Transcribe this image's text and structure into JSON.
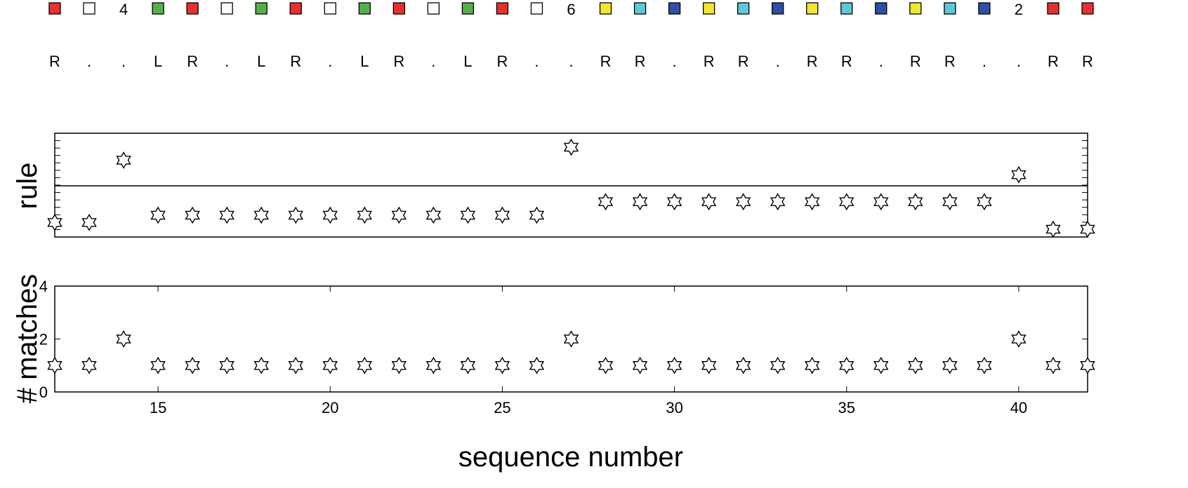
{
  "sequence_row": {
    "items": [
      {
        "kind": "square",
        "color": "#e8302f"
      },
      {
        "kind": "square",
        "color": "#ffffff"
      },
      {
        "kind": "text",
        "label": "4"
      },
      {
        "kind": "square",
        "color": "#55b04a"
      },
      {
        "kind": "square",
        "color": "#e8302f"
      },
      {
        "kind": "square",
        "color": "#ffffff"
      },
      {
        "kind": "square",
        "color": "#55b04a"
      },
      {
        "kind": "square",
        "color": "#e8302f"
      },
      {
        "kind": "square",
        "color": "#ffffff"
      },
      {
        "kind": "square",
        "color": "#55b04a"
      },
      {
        "kind": "square",
        "color": "#e8302f"
      },
      {
        "kind": "square",
        "color": "#ffffff"
      },
      {
        "kind": "square",
        "color": "#55b04a"
      },
      {
        "kind": "square",
        "color": "#e8302f"
      },
      {
        "kind": "square",
        "color": "#ffffff"
      },
      {
        "kind": "text",
        "label": "6"
      },
      {
        "kind": "square",
        "color": "#f2e630"
      },
      {
        "kind": "square",
        "color": "#5ec8d8"
      },
      {
        "kind": "square",
        "color": "#2f4ea8"
      },
      {
        "kind": "square",
        "color": "#f2e630"
      },
      {
        "kind": "square",
        "color": "#5ec8d8"
      },
      {
        "kind": "square",
        "color": "#2f4ea8"
      },
      {
        "kind": "square",
        "color": "#f2e630"
      },
      {
        "kind": "square",
        "color": "#5ec8d8"
      },
      {
        "kind": "square",
        "color": "#2f4ea8"
      },
      {
        "kind": "square",
        "color": "#f2e630"
      },
      {
        "kind": "square",
        "color": "#5ec8d8"
      },
      {
        "kind": "square",
        "color": "#2f4ea8"
      },
      {
        "kind": "text",
        "label": "2"
      },
      {
        "kind": "square",
        "color": "#e8302f"
      },
      {
        "kind": "square",
        "color": "#e8302f"
      }
    ]
  },
  "direction_row": {
    "labels": [
      "R",
      ".",
      ".",
      "L",
      "R",
      ".",
      "L",
      "R",
      ".",
      "L",
      "R",
      ".",
      "L",
      "R",
      ".",
      ".",
      "R",
      "R",
      ".",
      "R",
      "R",
      ".",
      "R",
      "R",
      ".",
      "R",
      "R",
      ".",
      ".",
      "R",
      "R"
    ]
  },
  "chart_data": [
    {
      "type": "scatter",
      "marker": "six-pointed-star",
      "ylabel": "rule",
      "y_ticks_labeled": false,
      "reference_line": true,
      "x": [
        12,
        13,
        14,
        15,
        16,
        17,
        18,
        19,
        20,
        21,
        22,
        23,
        24,
        25,
        26,
        27,
        28,
        29,
        30,
        31,
        32,
        33,
        34,
        35,
        36,
        37,
        38,
        39,
        40,
        41,
        42
      ],
      "series": [
        {
          "values": [
            0.28,
            0.28,
            1.48,
            0.42,
            0.42,
            0.42,
            0.42,
            0.42,
            0.42,
            0.42,
            0.42,
            0.42,
            0.42,
            0.42,
            0.42,
            1.73,
            0.68,
            0.68,
            0.68,
            0.68,
            0.68,
            0.68,
            0.68,
            0.68,
            0.68,
            0.68,
            0.68,
            0.68,
            1.2,
            0.15,
            0.15
          ]
        }
      ],
      "xlim": [
        12,
        42
      ],
      "ylim": [
        0,
        2
      ]
    },
    {
      "type": "scatter",
      "marker": "six-pointed-star",
      "xlabel": "sequence number",
      "ylabel": "# matches",
      "x": [
        12,
        13,
        14,
        15,
        16,
        17,
        18,
        19,
        20,
        21,
        22,
        23,
        24,
        25,
        26,
        27,
        28,
        29,
        30,
        31,
        32,
        33,
        34,
        35,
        36,
        37,
        38,
        39,
        40,
        41,
        42
      ],
      "series": [
        {
          "values": [
            1,
            1,
            2,
            1,
            1,
            1,
            1,
            1,
            1,
            1,
            1,
            1,
            1,
            1,
            1,
            2,
            1,
            1,
            1,
            1,
            1,
            1,
            1,
            1,
            1,
            1,
            1,
            1,
            2,
            1,
            1
          ]
        }
      ],
      "xlim": [
        12,
        42
      ],
      "ylim": [
        0,
        4
      ],
      "x_ticks": [
        15,
        20,
        25,
        30,
        35,
        40
      ],
      "y_ticks": [
        0,
        2,
        4
      ]
    }
  ]
}
